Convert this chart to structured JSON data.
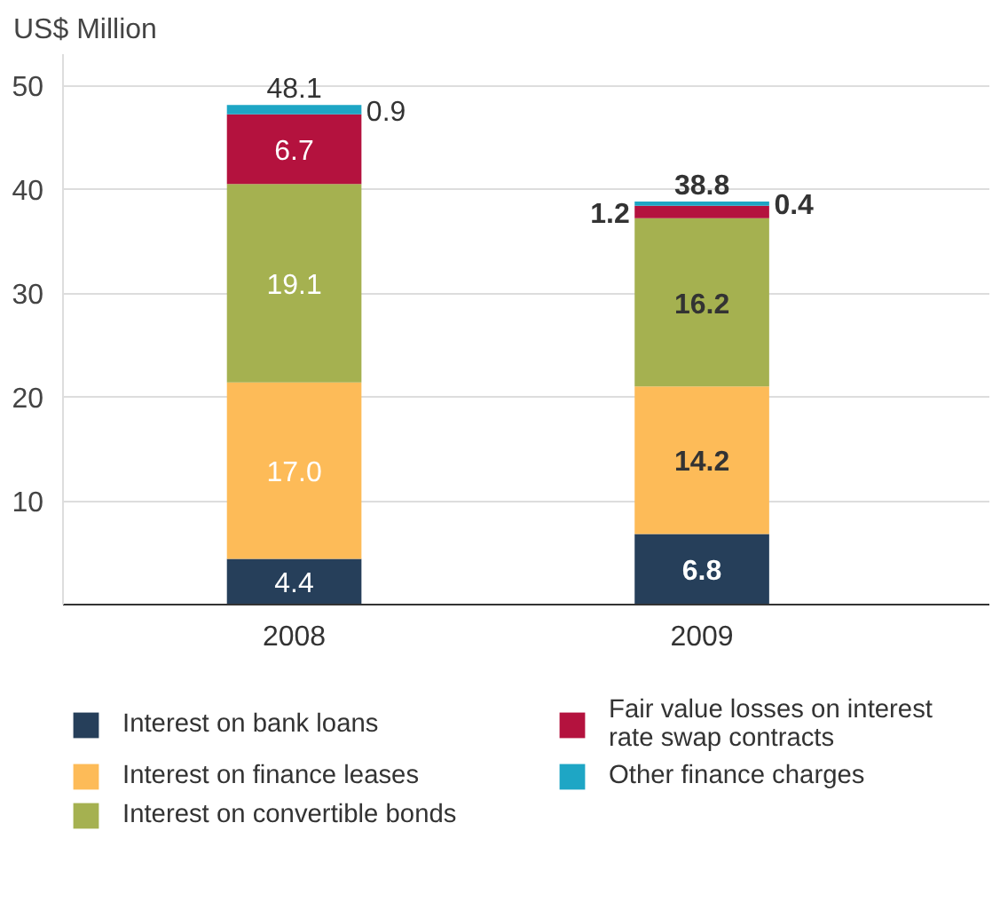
{
  "chart_data": {
    "type": "bar",
    "stacked": true,
    "ylabel": "US$ Million",
    "categories": [
      "2008",
      "2009"
    ],
    "series": [
      {
        "name": "Interest on bank loans",
        "color": "#263f5a",
        "values": [
          4.4,
          6.8
        ],
        "value_labels": [
          "4.4",
          "6.8"
        ]
      },
      {
        "name": "Interest on finance leases",
        "color": "#fdbb58",
        "values": [
          17.0,
          14.2
        ],
        "value_labels": [
          "17.0",
          "14.2"
        ]
      },
      {
        "name": "Interest on convertible bonds",
        "color": "#a5b150",
        "values": [
          19.1,
          16.2
        ],
        "value_labels": [
          "19.1",
          "16.2"
        ]
      },
      {
        "name": "Fair value losses on interest rate swap contracts",
        "color": "#b4123e",
        "values": [
          6.7,
          1.2
        ],
        "value_labels": [
          "6.7",
          "1.2"
        ]
      },
      {
        "name": "Other finance charges",
        "color": "#1ea6c5",
        "values": [
          0.9,
          0.4
        ],
        "value_labels": [
          "0.9",
          "0.4"
        ]
      }
    ],
    "totals": [
      "48.1",
      "38.8"
    ],
    "data_labels": true,
    "ylim": [
      0,
      53
    ],
    "yticks": [
      10,
      20,
      30,
      40,
      50
    ],
    "grid": "y",
    "legend": "bottom"
  }
}
